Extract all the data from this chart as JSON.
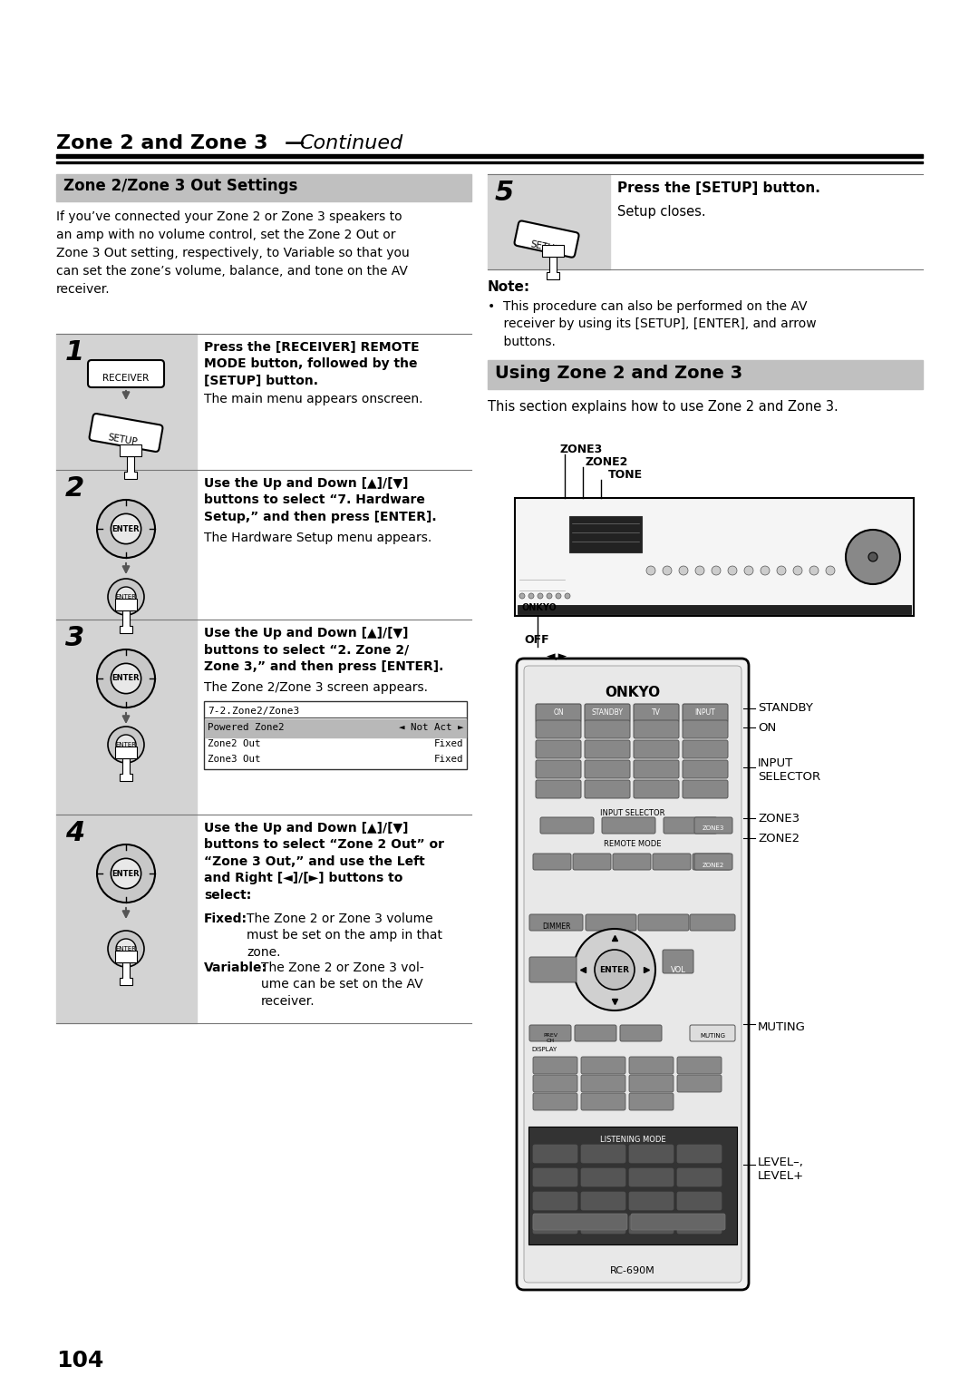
{
  "bg_color": "#ffffff",
  "page_number": "104",
  "title_bold": "Zone 2 and Zone 3",
  "title_italic": "Continued",
  "title_dash": "—",
  "section1_title": "Zone 2/Zone 3 Out Settings",
  "section1_body": "If you’ve connected your Zone 2 or Zone 3 speakers to\nan amp with no volume control, set the Zone 2 Out or\nZone 3 Out setting, respectively, to Variable so that you\ncan set the zone’s volume, balance, and tone on the AV\nreceiver.",
  "step1_bold": "Press the [RECEIVER] REMOTE\nMODE button, followed by the\n[SETUP] button.",
  "step1_normal": "The main menu appears onscreen.",
  "step2_bold": "Use the Up and Down [▲]/[▼]\nbuttons to select “7. Hardware\nSetup,” and then press [ENTER].",
  "step2_normal": "The Hardware Setup menu appears.",
  "step3_bold": "Use the Up and Down [▲]/[▼]\nbuttons to select “2. Zone 2/\nZone 3,” and then press [ENTER].",
  "step3_normal": "The Zone 2/Zone 3 screen appears.",
  "screen_title": "7-2.Zone2/Zone3",
  "screen_rows": [
    [
      "Powered Zone2",
      "◄ Not Act ►"
    ],
    [
      "Zone2 Out",
      "Fixed"
    ],
    [
      "Zone3 Out",
      "Fixed"
    ]
  ],
  "step4_bold": "Use the Up and Down [▲]/[▼]\nbuttons to select “Zone 2 Out” or\n“Zone 3 Out,” and use the Left\nand Right [◄]/[►] buttons to\nselect:",
  "step4_fixed_label": "Fixed:",
  "step4_fixed_text": "The Zone 2 or Zone 3 volume\nmust be set on the amp in that\nzone.",
  "step4_variable_label": "Variable:",
  "step4_variable_text": "The Zone 2 or Zone 3 vol-\nume can be set on the AV\nreceiver.",
  "step5_bold": "Press the [SETUP] button.",
  "step5_normal": "Setup closes.",
  "note_header": "Note:",
  "note_text": "•  This procedure can also be performed on the AV\n    receiver by using its [SETUP], [ENTER], and arrow\n    buttons.",
  "section2_title": "Using Zone 2 and Zone 3",
  "section2_body": "This section explains how to use Zone 2 and Zone 3.",
  "diag_label_zone3": "ZONE3",
  "diag_label_zone2": "ZONE2",
  "diag_label_tone": "TONE",
  "diag_label_off": "OFF",
  "rem_standby": "STANDBY",
  "rem_on": "ON",
  "rem_input": "INPUT\nSELECTOR",
  "rem_zone3": "ZONE3",
  "rem_zone2": "ZONE2",
  "rem_muting": "MUTING",
  "rem_level": "LEVEL–,\nLEVEL+",
  "rem_model": "RC-690M",
  "rem_brand": "ONKYO",
  "gray_step": "#d3d3d3",
  "gray_header": "#c0c0c0",
  "gray_header2": "#b0b0b0"
}
